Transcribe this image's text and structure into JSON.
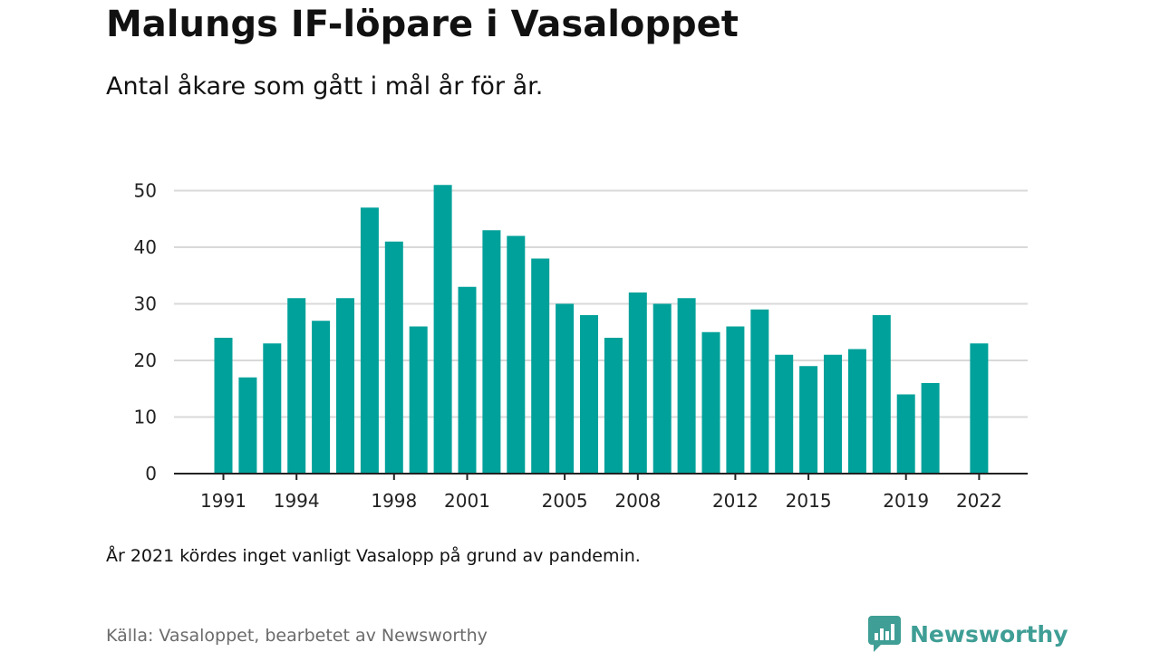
{
  "title": "Malungs IF-löpare i Vasaloppet",
  "subtitle": "Antal åkare som gått i mål år för år.",
  "note": "År 2021 kördes inget vanligt Vasalopp på grund av pandemin.",
  "source": "Källa: Vasaloppet, bearbetet av Newsworthy",
  "brand": {
    "name": "Newsworthy",
    "color": "#3f9e95",
    "icon": "newsworthy-logo-icon"
  },
  "colors": {
    "bar": "#00a19a",
    "grid": "#d9d9d9",
    "axis": "#222222"
  },
  "chart_data": {
    "type": "bar",
    "categories": [
      "1991",
      "1992",
      "1993",
      "1994",
      "1995",
      "1996",
      "1997",
      "1998",
      "1999",
      "2000",
      "2001",
      "2002",
      "2003",
      "2004",
      "2005",
      "2006",
      "2007",
      "2008",
      "2009",
      "2010",
      "2011",
      "2012",
      "2013",
      "2014",
      "2015",
      "2016",
      "2017",
      "2018",
      "2019",
      "2020",
      "2021",
      "2022"
    ],
    "values": [
      24,
      17,
      23,
      31,
      27,
      31,
      47,
      41,
      26,
      51,
      33,
      43,
      42,
      38,
      30,
      28,
      24,
      32,
      30,
      31,
      25,
      26,
      29,
      21,
      19,
      21,
      22,
      28,
      14,
      16,
      null,
      23
    ],
    "xtick_labels": [
      "1991",
      "1994",
      "1998",
      "2001",
      "2005",
      "2008",
      "2012",
      "2015",
      "2019",
      "2022"
    ],
    "yticks": [
      0,
      10,
      20,
      30,
      40,
      50
    ],
    "ylim": [
      0,
      52
    ],
    "xlabel": "",
    "ylabel": "",
    "grid": true
  }
}
